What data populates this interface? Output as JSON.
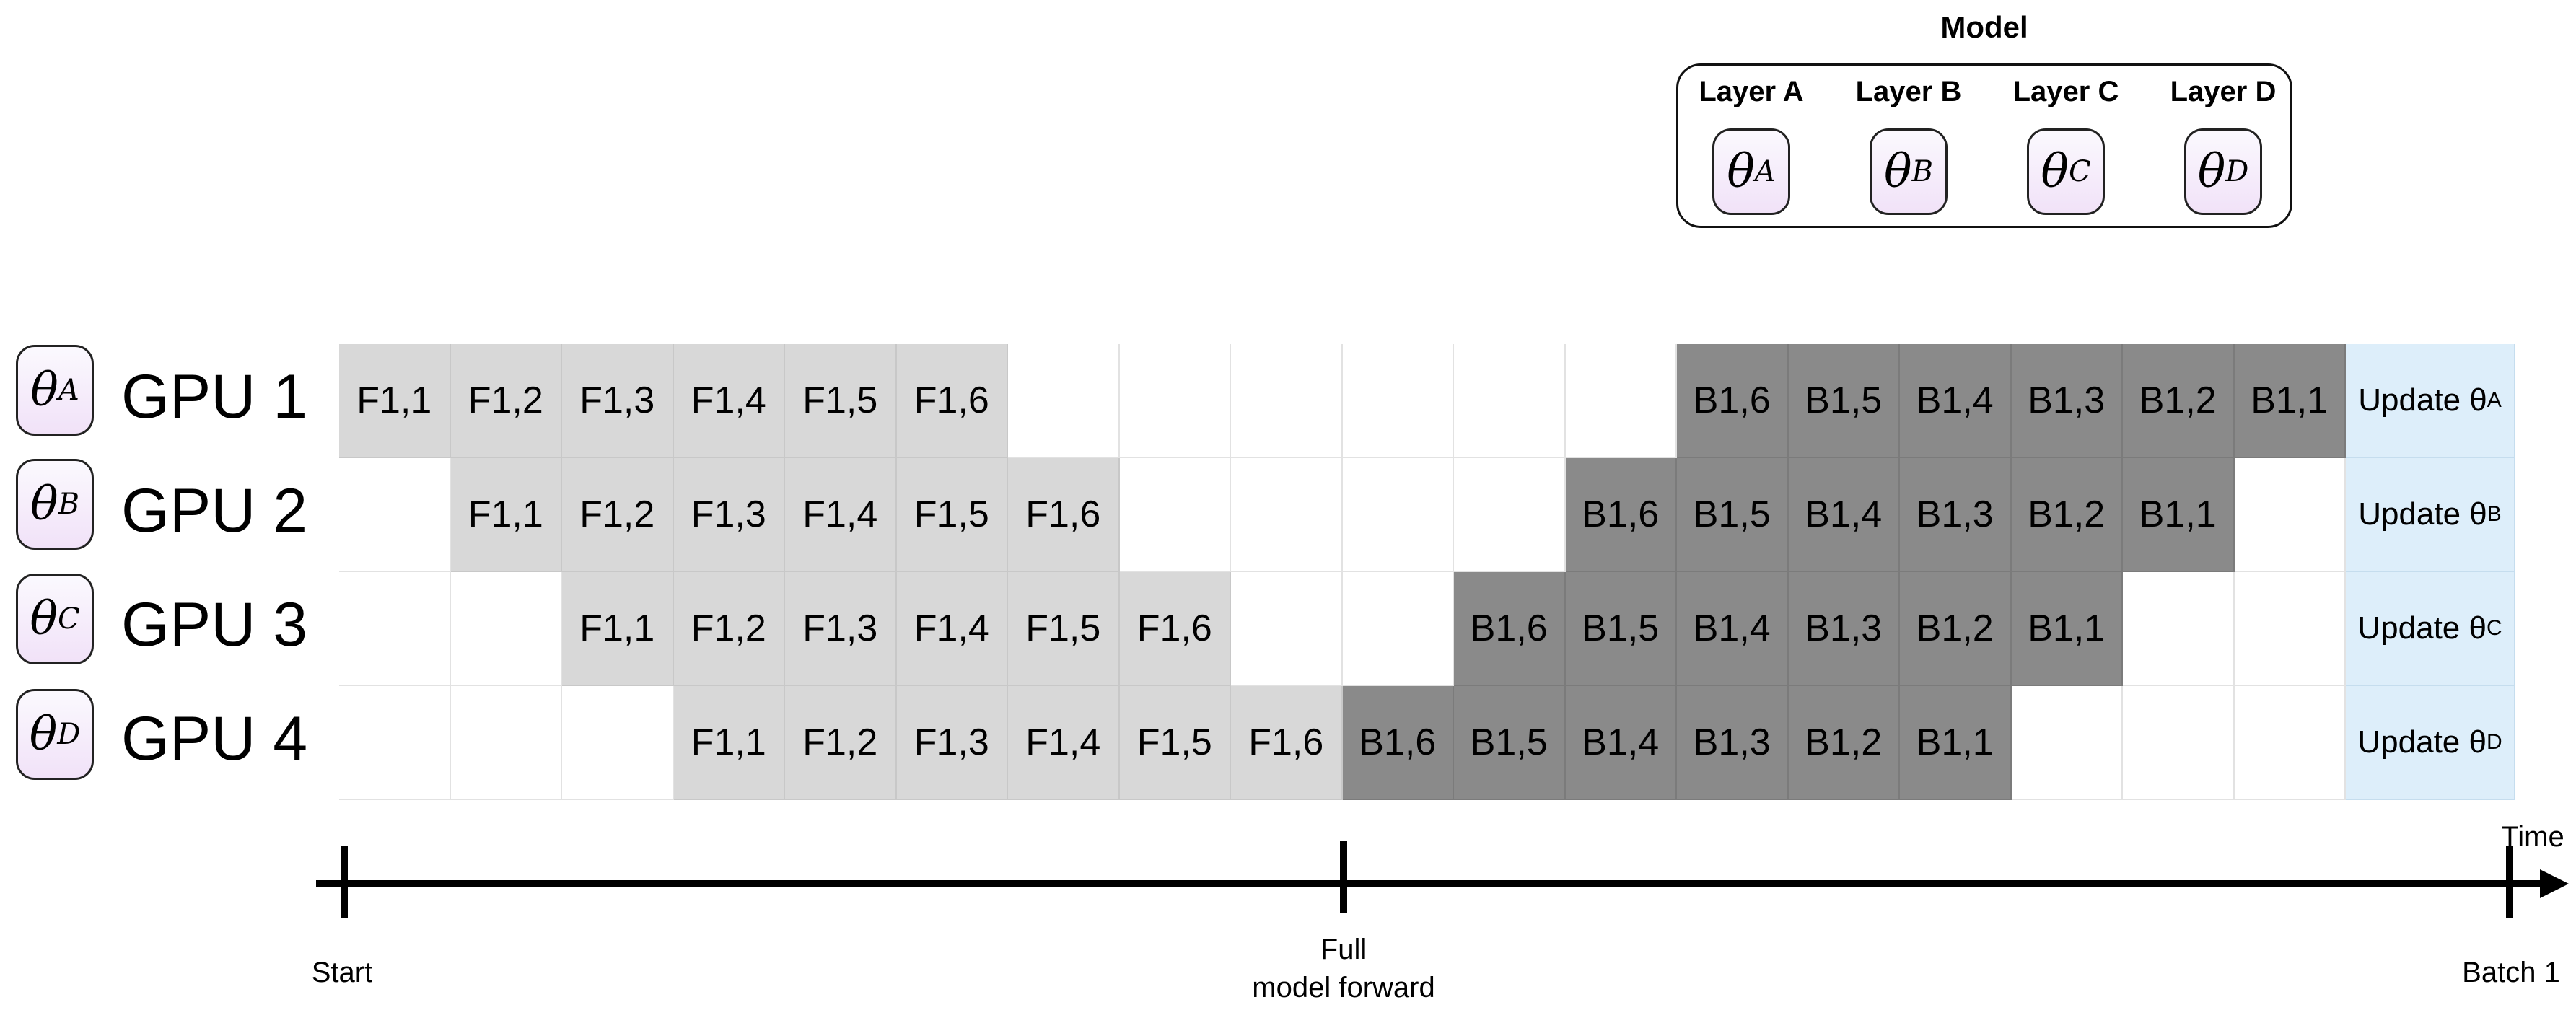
{
  "model": {
    "title": "Model",
    "layers": [
      {
        "label": "Layer A",
        "theta": "θ",
        "sub": "A"
      },
      {
        "label": "Layer B",
        "theta": "θ",
        "sub": "B"
      },
      {
        "label": "Layer C",
        "theta": "θ",
        "sub": "C"
      },
      {
        "label": "Layer D",
        "theta": "θ",
        "sub": "D"
      }
    ]
  },
  "gpus": [
    {
      "label": "GPU 1",
      "theta": "θ",
      "sub": "A",
      "cells": [
        "F1,1",
        "F1,2",
        "F1,3",
        "F1,4",
        "F1,5",
        "F1,6",
        "",
        "",
        "",
        "",
        "",
        "",
        "B1,6",
        "B1,5",
        "B1,4",
        "B1,3",
        "B1,2",
        "B1,1"
      ],
      "update": {
        "text": "Update θ",
        "sub": "A"
      }
    },
    {
      "label": "GPU 2",
      "theta": "θ",
      "sub": "B",
      "cells": [
        "",
        "F1,1",
        "F1,2",
        "F1,3",
        "F1,4",
        "F1,5",
        "F1,6",
        "",
        "",
        "",
        "",
        "B1,6",
        "B1,5",
        "B1,4",
        "B1,3",
        "B1,2",
        "B1,1",
        ""
      ],
      "update": {
        "text": "Update θ",
        "sub": "B"
      }
    },
    {
      "label": "GPU 3",
      "theta": "θ",
      "sub": "C",
      "cells": [
        "",
        "",
        "F1,1",
        "F1,2",
        "F1,3",
        "F1,4",
        "F1,5",
        "F1,6",
        "",
        "",
        "B1,6",
        "B1,5",
        "B1,4",
        "B1,3",
        "B1,2",
        "B1,1",
        "",
        ""
      ],
      "update": {
        "text": "Update θ",
        "sub": "C"
      }
    },
    {
      "label": "GPU 4",
      "theta": "θ",
      "sub": "D",
      "cells": [
        "",
        "",
        "",
        "F1,1",
        "F1,2",
        "F1,3",
        "F1,4",
        "F1,5",
        "F1,6",
        "B1,6",
        "B1,5",
        "B1,4",
        "B1,3",
        "B1,2",
        "B1,1",
        "",
        "",
        ""
      ],
      "update": {
        "text": "Update θ",
        "sub": "D"
      }
    }
  ],
  "colors": {
    "forward": "#d8d8d8",
    "backward": "#8a8a8a",
    "update": "#ddeefa",
    "theta_fill": "#f1e2f8"
  },
  "timeline": {
    "axis_label": "Time",
    "start_label": "Start",
    "mid_label_line1": "Full",
    "mid_label_line2": "model forward",
    "end_label": "Batch 1"
  }
}
